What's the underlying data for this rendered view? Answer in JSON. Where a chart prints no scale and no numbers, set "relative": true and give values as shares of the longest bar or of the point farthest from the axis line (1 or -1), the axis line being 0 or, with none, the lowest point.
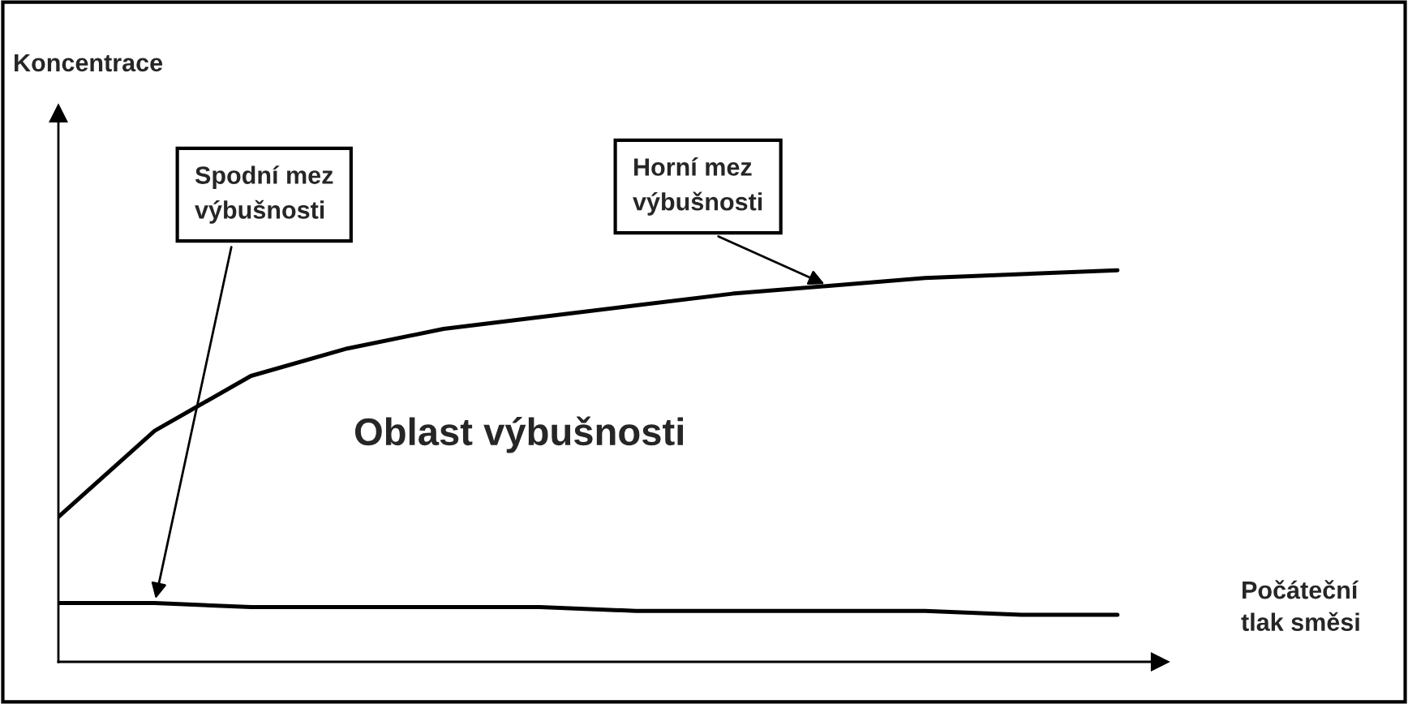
{
  "chart_data": {
    "type": "line",
    "relative": true,
    "xlabel": "Počáteční\ntlak směsi",
    "legend": false,
    "grid": false,
    "categories": [
      null,
      null,
      null,
      null,
      null,
      null,
      null,
      null,
      null,
      null,
      null,
      null
    ],
    "series": [
      {
        "color": "#000000",
        "values": [
          0.15,
          0.15,
          0.14,
          0.14,
          0.14,
          0.14,
          0.13,
          0.13,
          0.13,
          0.13,
          0.12,
          0.12
        ]
      },
      {
        "color": "#000000",
        "values": [
          0.37,
          0.59,
          0.73,
          0.8,
          0.85,
          0.88,
          0.91,
          0.94,
          0.96,
          0.98,
          0.99,
          1.0
        ]
      }
    ],
    "annotations": [
      "Spodní mez\nvýbušnosti",
      "Horní mez\nvýbušnosti",
      "Oblast výbušnosti",
      "Koncentrace"
    ]
  }
}
